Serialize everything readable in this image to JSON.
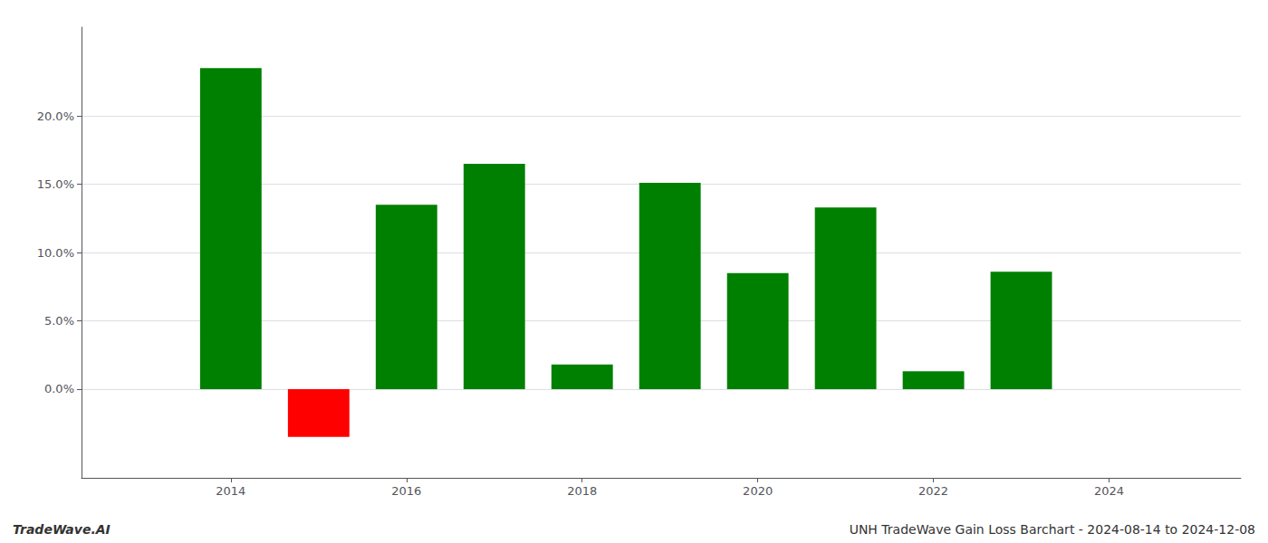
{
  "chart_data": {
    "type": "bar",
    "x": [
      2014,
      2015,
      2016,
      2017,
      2018,
      2019,
      2020,
      2021,
      2022,
      2023
    ],
    "values": [
      0.235,
      -0.035,
      0.135,
      0.165,
      0.018,
      0.151,
      0.085,
      0.133,
      0.013,
      0.086
    ],
    "colors": [
      "#008000",
      "#ff0000",
      "#008000",
      "#008000",
      "#008000",
      "#008000",
      "#008000",
      "#008000",
      "#008000",
      "#008000"
    ],
    "xlim": [
      2012.3,
      2025.5
    ],
    "xticks": [
      2014,
      2016,
      2018,
      2020,
      2022,
      2024
    ],
    "ylim": [
      -0.065,
      0.265
    ],
    "yticks": [
      {
        "value": 0.0,
        "label": "0.0%"
      },
      {
        "value": 0.05,
        "label": "5.0%"
      },
      {
        "value": 0.1,
        "label": "10.0%"
      },
      {
        "value": 0.15,
        "label": "15.0%"
      },
      {
        "value": 0.2,
        "label": "20.0%"
      }
    ],
    "grid": true,
    "annotations": [
      "TradeWave.AI",
      "UNH TradeWave Gain Loss Barchart - 2024-08-14 to 2024-12-08"
    ]
  }
}
